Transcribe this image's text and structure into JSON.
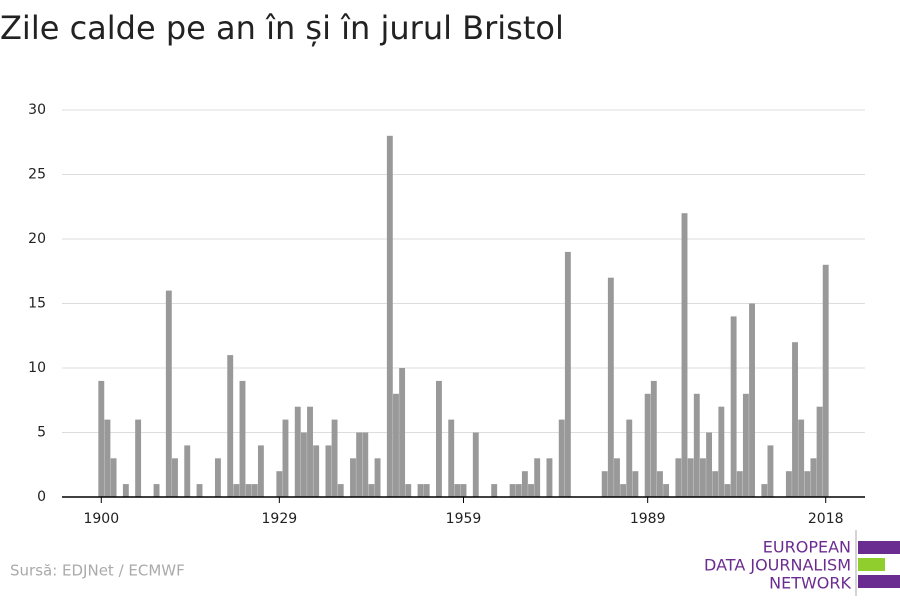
{
  "chart_data": {
    "type": "bar",
    "title": "Zile calde pe an în și în jurul Bristol",
    "source": "Sursă: EDJNet / ECMWF",
    "logo": [
      "EUROPEAN",
      "DATA JOURNALISM",
      "NETWORK"
    ],
    "color": "#999999",
    "x": [
      1900,
      1901,
      1902,
      1903,
      1904,
      1905,
      1906,
      1907,
      1908,
      1909,
      1910,
      1911,
      1912,
      1913,
      1914,
      1915,
      1916,
      1917,
      1918,
      1919,
      1920,
      1921,
      1922,
      1923,
      1924,
      1925,
      1926,
      1927,
      1928,
      1929,
      1930,
      1931,
      1932,
      1933,
      1934,
      1935,
      1936,
      1937,
      1938,
      1939,
      1940,
      1941,
      1942,
      1943,
      1944,
      1945,
      1946,
      1947,
      1948,
      1949,
      1950,
      1951,
      1952,
      1953,
      1954,
      1955,
      1956,
      1957,
      1958,
      1959,
      1960,
      1961,
      1962,
      1963,
      1964,
      1965,
      1966,
      1967,
      1968,
      1969,
      1970,
      1971,
      1972,
      1973,
      1974,
      1975,
      1976,
      1977,
      1978,
      1979,
      1980,
      1981,
      1982,
      1983,
      1984,
      1985,
      1986,
      1987,
      1988,
      1989,
      1990,
      1991,
      1992,
      1993,
      1994,
      1995,
      1996,
      1997,
      1998,
      1999,
      2000,
      2001,
      2002,
      2003,
      2004,
      2005,
      2006,
      2007,
      2008,
      2009,
      2010,
      2011,
      2012,
      2013,
      2014,
      2015,
      2016,
      2017,
      2018
    ],
    "values": [
      9,
      6,
      3,
      0,
      1,
      0,
      6,
      0,
      0,
      1,
      0,
      16,
      3,
      0,
      4,
      0,
      1,
      0,
      0,
      3,
      0,
      11,
      1,
      9,
      1,
      1,
      4,
      0,
      0,
      2,
      6,
      0,
      7,
      5,
      7,
      4,
      0,
      4,
      6,
      1,
      0,
      3,
      5,
      5,
      1,
      3,
      0,
      28,
      8,
      10,
      1,
      0,
      1,
      1,
      0,
      9,
      0,
      6,
      1,
      1,
      0,
      5,
      0,
      0,
      1,
      0,
      0,
      1,
      1,
      2,
      1,
      3,
      0,
      3,
      0,
      6,
      19,
      0,
      0,
      0,
      0,
      0,
      2,
      17,
      3,
      1,
      6,
      2,
      0,
      8,
      9,
      2,
      1,
      0,
      3,
      22,
      3,
      8,
      3,
      5,
      2,
      7,
      1,
      14,
      2,
      8,
      15,
      0,
      1,
      4,
      0,
      0,
      2,
      12,
      6,
      2,
      3,
      7,
      18
    ],
    "xlim": [
      1893.6,
      2024.4
    ],
    "xticks": [
      1900,
      1929,
      1959,
      1989,
      2018
    ],
    "ylim": [
      0,
      30
    ],
    "yticks": [
      0,
      5,
      10,
      15,
      20,
      25,
      30
    ],
    "grid": true
  }
}
